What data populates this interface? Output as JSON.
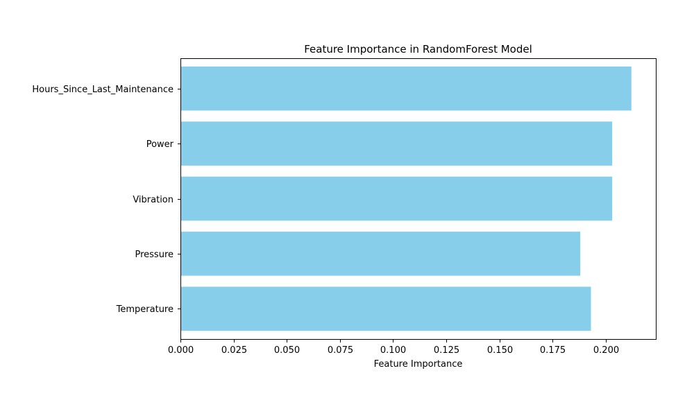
{
  "chart_data": {
    "type": "bar",
    "orientation": "horizontal",
    "title": "Feature Importance in RandomForest Model",
    "xlabel": "Feature Importance",
    "ylabel": "",
    "categories": [
      "Temperature",
      "Pressure",
      "Vibration",
      "Power",
      "Hours_Since_Last_Maintenance"
    ],
    "values": [
      0.193,
      0.188,
      0.203,
      0.203,
      0.212
    ],
    "xlim": [
      0,
      0.2235
    ],
    "xticks": [
      0.0,
      0.025,
      0.05,
      0.075,
      0.1,
      0.125,
      0.15,
      0.175,
      0.2
    ],
    "xtick_labels": [
      "0.000",
      "0.025",
      "0.050",
      "0.075",
      "0.100",
      "0.125",
      "0.150",
      "0.175",
      "0.200"
    ],
    "bar_color": "#87CEEB",
    "grid": false,
    "legend": "none"
  }
}
